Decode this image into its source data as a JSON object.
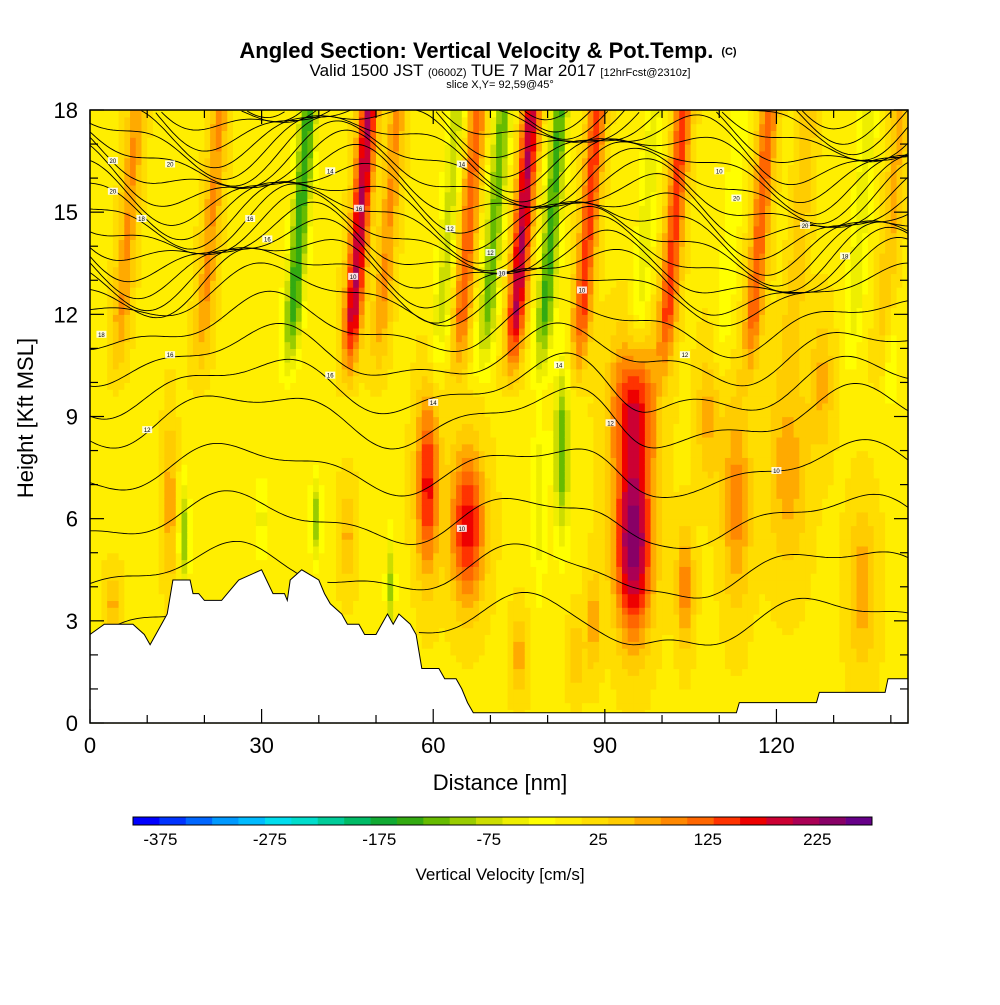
{
  "header": {
    "title_main": "Angled Section: Vertical Velocity & Pot.Temp.",
    "title_unit": "(C)",
    "valid_prefix": "Valid 1500 JST",
    "valid_utc": "(0600Z)",
    "valid_date": "TUE 7 Mar 2017",
    "valid_fcst": "[12hrFcst@2310z]",
    "slice": "slice X,Y= 92,59@45°"
  },
  "chart_data": {
    "type": "heatmap",
    "xlabel": "Distance [nm]",
    "ylabel": "Height [Kft MSL]",
    "xlim": [
      0,
      143
    ],
    "ylim": [
      0,
      18
    ],
    "x_ticks": [
      "0",
      "30",
      "60",
      "90",
      "120"
    ],
    "x_tick_values": [
      0,
      30,
      60,
      90,
      120
    ],
    "y_ticks": [
      "0",
      "3",
      "6",
      "9",
      "12",
      "15",
      "18"
    ],
    "y_tick_values": [
      0,
      3,
      6,
      9,
      12,
      15,
      18
    ],
    "colorbar": {
      "title": "Vertical Velocity [cm/s]",
      "labels": [
        "-375",
        "-275",
        "-175",
        "-75",
        "25",
        "125",
        "225"
      ],
      "label_values": [
        -375,
        -275,
        -175,
        -75,
        25,
        125,
        225
      ],
      "range": [
        -400,
        275
      ],
      "colors": [
        "#0000ff",
        "#0033ff",
        "#0066ff",
        "#0099ff",
        "#00bbff",
        "#00ddee",
        "#00ddcc",
        "#00cc99",
        "#00bb66",
        "#11aa33",
        "#33aa11",
        "#66bb00",
        "#99cc00",
        "#ccdd00",
        "#eeee00",
        "#ffff00",
        "#ffee00",
        "#ffdd00",
        "#ffcc00",
        "#ffaa00",
        "#ff8800",
        "#ff6600",
        "#ff3300",
        "#ee0000",
        "#cc0033",
        "#aa0055",
        "#880066",
        "#660088"
      ]
    },
    "terrain": [
      [
        0,
        2.6
      ],
      [
        2.5,
        2.9
      ],
      [
        7.5,
        2.9
      ],
      [
        9.5,
        2.6
      ],
      [
        10.5,
        2.3
      ],
      [
        11.5,
        2.6
      ],
      [
        12.5,
        2.9
      ],
      [
        13.5,
        3.2
      ],
      [
        14.5,
        4.2
      ],
      [
        17.5,
        4.2
      ],
      [
        18,
        3.8
      ],
      [
        19,
        3.8
      ],
      [
        20,
        3.6
      ],
      [
        23,
        3.6
      ],
      [
        24,
        3.8
      ],
      [
        26,
        4.2
      ],
      [
        30,
        4.5
      ],
      [
        32,
        3.8
      ],
      [
        34,
        3.8
      ],
      [
        34.5,
        3.6
      ],
      [
        35,
        4.2
      ],
      [
        37,
        4.5
      ],
      [
        40,
        4.2
      ],
      [
        41,
        3.8
      ],
      [
        42,
        3.5
      ],
      [
        44,
        3.2
      ],
      [
        45,
        2.9
      ],
      [
        47,
        2.9
      ],
      [
        48,
        2.6
      ],
      [
        50,
        2.6
      ],
      [
        51,
        2.9
      ],
      [
        52,
        3.2
      ],
      [
        53,
        2.9
      ],
      [
        54,
        3.2
      ],
      [
        56,
        2.9
      ],
      [
        57,
        2.6
      ],
      [
        58,
        1.6
      ],
      [
        61,
        1.6
      ],
      [
        62,
        1.3
      ],
      [
        64,
        1.3
      ],
      [
        65,
        1.0
      ],
      [
        66,
        0.6
      ],
      [
        67,
        0.3
      ],
      [
        68,
        0.3
      ],
      [
        90,
        0.3
      ],
      [
        94,
        0.3
      ],
      [
        98,
        0.3
      ],
      [
        113,
        0.3
      ],
      [
        113.5,
        0.6
      ],
      [
        127,
        0.6
      ],
      [
        127.5,
        0.9
      ],
      [
        139,
        0.9
      ],
      [
        139.5,
        1.3
      ],
      [
        143,
        1.3
      ]
    ],
    "w_features": [
      {
        "x": 95,
        "z": 5.2,
        "amp": 240,
        "sx": 3.2,
        "sz": 2.6
      },
      {
        "x": 95,
        "z": 9.2,
        "amp": 160,
        "sx": 4.0,
        "sz": 2.2
      },
      {
        "x": 66,
        "z": 5.8,
        "amp": 170,
        "sx": 3.0,
        "sz": 2.2
      },
      {
        "x": 59,
        "z": 7.0,
        "amp": 160,
        "sx": 2.0,
        "sz": 2.6
      },
      {
        "x": 82.5,
        "z": 8.0,
        "amp": -140,
        "sx": 1.4,
        "sz": 2.6
      },
      {
        "x": 78.5,
        "z": 6.5,
        "amp": -60,
        "sx": 1.2,
        "sz": 3.0
      },
      {
        "x": 16.5,
        "z": 5.5,
        "amp": -110,
        "sx": 0.9,
        "sz": 1.6
      },
      {
        "x": 39.5,
        "z": 6.0,
        "amp": -110,
        "sx": 1.0,
        "sz": 1.2
      },
      {
        "x": 52.5,
        "z": 4.0,
        "amp": -100,
        "sx": 0.8,
        "sz": 1.5
      },
      {
        "x": 30,
        "z": 6.0,
        "amp": -50,
        "sx": 1.5,
        "sz": 1.2
      },
      {
        "x": 4,
        "z": 3.5,
        "amp": 60,
        "sx": 1.5,
        "sz": 1.0
      },
      {
        "x": 14,
        "z": 6.5,
        "amp": 70,
        "sx": 1.2,
        "sz": 2.5
      },
      {
        "x": 45,
        "z": 5.5,
        "amp": 60,
        "sx": 1.5,
        "sz": 1.5
      },
      {
        "x": 88,
        "z": 3.0,
        "amp": 70,
        "sx": 1.2,
        "sz": 1.5
      },
      {
        "x": 104,
        "z": 4.0,
        "amp": 100,
        "sx": 1.5,
        "sz": 1.7
      },
      {
        "x": 113,
        "z": 6.5,
        "amp": 90,
        "sx": 2.5,
        "sz": 3.0
      },
      {
        "x": 108,
        "z": 9.0,
        "amp": 60,
        "sx": 2.0,
        "sz": 2.0
      },
      {
        "x": 122,
        "z": 7.5,
        "amp": 70,
        "sx": 3.5,
        "sz": 3.0
      },
      {
        "x": 135,
        "z": 4.0,
        "amp": 70,
        "sx": 2.5,
        "sz": 2.5
      },
      {
        "x": 128,
        "z": 10.0,
        "amp": 60,
        "sx": 2.0,
        "sz": 2.0
      },
      {
        "x": 140,
        "z": 11.0,
        "amp": -40,
        "sx": 1.5,
        "sz": 2.0
      },
      {
        "x": 75,
        "z": 2.0,
        "amp": 70,
        "sx": 1.5,
        "sz": 1.2
      },
      {
        "x": 85,
        "z": 2.0,
        "amp": 50,
        "sx": 1.5,
        "sz": 1.2
      }
    ],
    "wave_bands_upper": [
      {
        "x0": 5.5,
        "amp": 80
      },
      {
        "x0": 20,
        "amp": 80
      },
      {
        "x0": 35.5,
        "amp": -160
      },
      {
        "x0": 46,
        "amp": 200
      },
      {
        "x0": 51,
        "amp": 80
      },
      {
        "x0": 61.5,
        "amp": -80
      },
      {
        "x0": 65,
        "amp": 120
      },
      {
        "x0": 69.5,
        "amp": -130
      },
      {
        "x0": 74.5,
        "amp": 200
      },
      {
        "x0": 79.5,
        "amp": -150
      },
      {
        "x0": 86,
        "amp": 140
      },
      {
        "x0": 96,
        "amp": -60
      },
      {
        "x0": 101,
        "amp": 140
      },
      {
        "x0": 111,
        "amp": -40
      },
      {
        "x0": 116,
        "amp": 120
      },
      {
        "x0": 123,
        "amp": 50
      },
      {
        "x0": 133.5,
        "amp": -60
      },
      {
        "x0": 139,
        "amp": 60
      }
    ],
    "theta_labels": [
      "20",
      "20",
      "20",
      "18",
      "16",
      "16",
      "16",
      "14",
      "14",
      "12",
      "12",
      "10",
      "10",
      "20",
      "20",
      "18",
      "18",
      "16",
      "16",
      "14",
      "14",
      "12",
      "12",
      "10",
      "10",
      "10",
      "10",
      "12"
    ]
  }
}
